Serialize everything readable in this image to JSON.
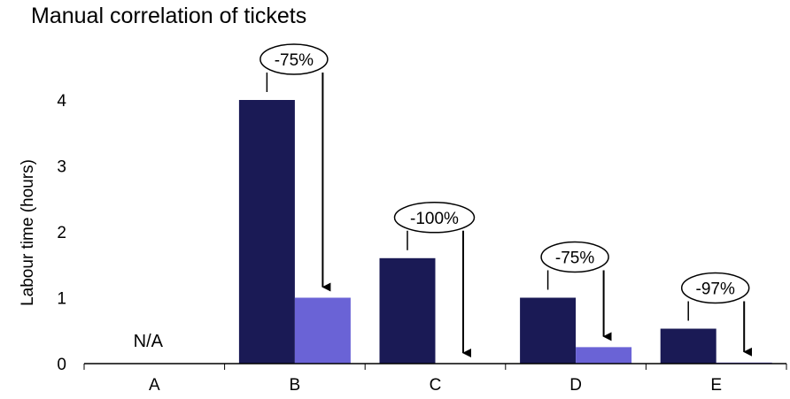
{
  "chart_data": {
    "type": "bar",
    "title": "Manual correlation of tickets",
    "xlabel": "",
    "ylabel": "Labour time (hours)",
    "categories": [
      "A",
      "B",
      "C",
      "D",
      "E"
    ],
    "yticks": [
      0,
      1,
      2,
      3,
      4
    ],
    "ylim": [
      0,
      4.5
    ],
    "series": [
      {
        "values": [
          null,
          4.0,
          1.6,
          1.0,
          0.53
        ],
        "color": "#1a1a55"
      },
      {
        "values": [
          null,
          1.0,
          0.0,
          0.25,
          0.016
        ],
        "color": "#6a63d6"
      }
    ],
    "annotations": [
      {
        "category": "A",
        "text": "N/A"
      },
      {
        "category": "B",
        "text": "-75%"
      },
      {
        "category": "C",
        "text": "-100%"
      },
      {
        "category": "D",
        "text": "-75%"
      },
      {
        "category": "E",
        "text": "-97%"
      }
    ],
    "grid": false,
    "legend": "none"
  }
}
